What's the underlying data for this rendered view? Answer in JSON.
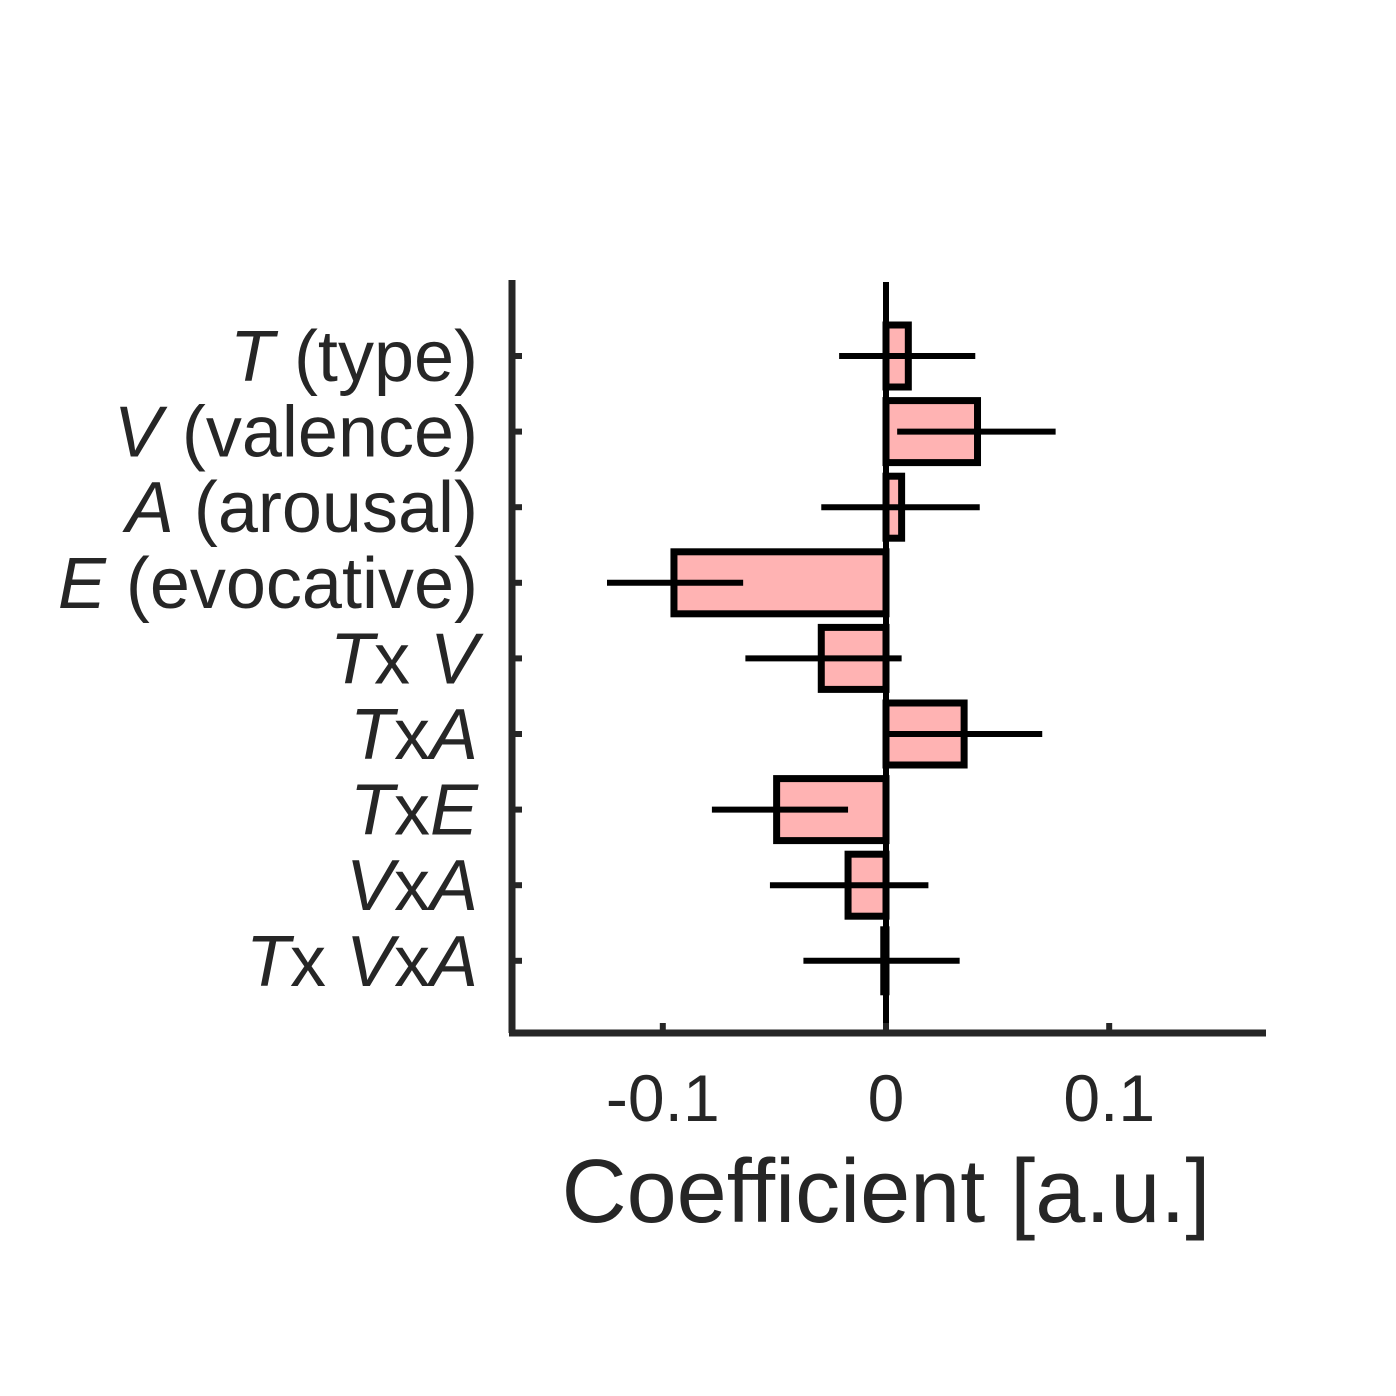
{
  "chart_data": {
    "type": "bar",
    "orientation": "horizontal",
    "xlabel": "Coefficient [a.u.]",
    "ylabel": "",
    "xlim": [
      -0.17,
      0.17
    ],
    "xticks": [
      {
        "value": -0.1,
        "label": "-0.1"
      },
      {
        "value": 0,
        "label": "0"
      },
      {
        "value": 0.1,
        "label": "0.1"
      }
    ],
    "bar_color": "#ffb3b3",
    "bar_edge_color": "#000000",
    "categories": [
      {
        "parts": [
          {
            "text": "T",
            "italic": true
          },
          {
            "text": " (type)",
            "italic": false
          }
        ],
        "value": 0.01,
        "err_low": -0.021,
        "err_high": 0.04
      },
      {
        "parts": [
          {
            "text": "V",
            "italic": true
          },
          {
            "text": " (valence)",
            "italic": false
          }
        ],
        "value": 0.041,
        "err_low": 0.005,
        "err_high": 0.076
      },
      {
        "parts": [
          {
            "text": "A",
            "italic": true
          },
          {
            "text": " (arousal)",
            "italic": false
          }
        ],
        "value": 0.007,
        "err_low": -0.029,
        "err_high": 0.042
      },
      {
        "parts": [
          {
            "text": "E",
            "italic": true
          },
          {
            "text": " (evocative)",
            "italic": false
          }
        ],
        "value": -0.095,
        "err_low": -0.125,
        "err_high": -0.064
      },
      {
        "parts": [
          {
            "text": "T",
            "italic": true
          },
          {
            "text": "x",
            "italic": false
          },
          {
            "text": " V",
            "italic": true
          }
        ],
        "value": -0.029,
        "err_low": -0.063,
        "err_high": 0.007
      },
      {
        "parts": [
          {
            "text": "T",
            "italic": true
          },
          {
            "text": "x",
            "italic": false
          },
          {
            "text": "A",
            "italic": true
          }
        ],
        "value": 0.035,
        "err_low": 0.0,
        "err_high": 0.07
      },
      {
        "parts": [
          {
            "text": "T",
            "italic": true
          },
          {
            "text": "x",
            "italic": false
          },
          {
            "text": "E",
            "italic": true
          }
        ],
        "value": -0.049,
        "err_low": -0.078,
        "err_high": -0.017
      },
      {
        "parts": [
          {
            "text": "V",
            "italic": true
          },
          {
            "text": "x",
            "italic": false
          },
          {
            "text": "A",
            "italic": true
          }
        ],
        "value": -0.017,
        "err_low": -0.052,
        "err_high": 0.019
      },
      {
        "parts": [
          {
            "text": "T",
            "italic": true
          },
          {
            "text": "x",
            "italic": false
          },
          {
            "text": " V",
            "italic": true
          },
          {
            "text": "x",
            "italic": false
          },
          {
            "text": "A",
            "italic": true
          }
        ],
        "value": -0.001,
        "err_low": -0.037,
        "err_high": 0.033
      }
    ]
  }
}
